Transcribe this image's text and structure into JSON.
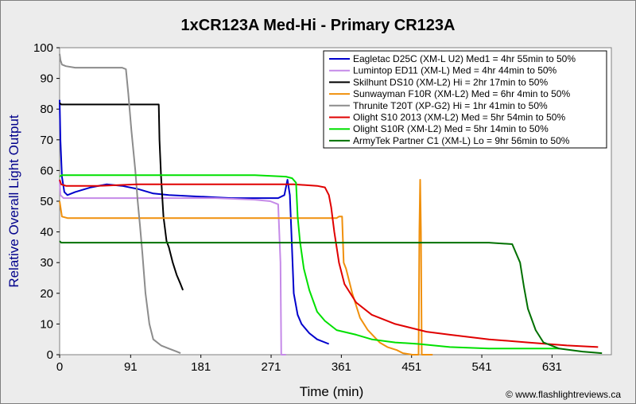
{
  "chart_data": {
    "type": "line",
    "title": "1xCR123A Med-Hi - Primary CR123A",
    "xlabel": "Time (min)",
    "ylabel": "Relative Overall Light Output",
    "xlim": [
      0,
      707
    ],
    "ylim": [
      0,
      100
    ],
    "x_ticks": [
      0,
      91,
      181,
      271,
      361,
      451,
      541,
      631
    ],
    "y_ticks": [
      0,
      10,
      20,
      30,
      40,
      50,
      60,
      70,
      80,
      90,
      100
    ],
    "grid": false,
    "legend_position": "top-right",
    "credit": "© www.flashlightreviews.ca",
    "series": [
      {
        "name": "Eagletac D25C (XM-L U2) Med1 = 4hr 55min to 50%",
        "color": "#0000cc",
        "x": [
          0,
          1,
          3,
          6,
          10,
          20,
          40,
          60,
          80,
          100,
          120,
          140,
          180,
          220,
          260,
          280,
          288,
          292,
          295,
          297,
          300,
          305,
          310,
          320,
          330,
          345
        ],
        "y": [
          83,
          70,
          58,
          53,
          52,
          53,
          54.5,
          55.5,
          55,
          54,
          52.5,
          52,
          51.5,
          51,
          51,
          51,
          52,
          57,
          52,
          40,
          20,
          13,
          10,
          7,
          5,
          3.5
        ]
      },
      {
        "name": "Lumintop ED11 (XM-L) Med = 4hr 44min to 50%",
        "color": "#c58ae8",
        "x": [
          0,
          1,
          5,
          50,
          100,
          150,
          200,
          250,
          270,
          280,
          283,
          284,
          285,
          290
        ],
        "y": [
          57,
          52,
          51,
          51,
          51,
          51,
          51,
          50.5,
          50,
          49,
          30,
          0,
          0,
          0
        ]
      },
      {
        "name": "Skilhunt DS10 (XM-L2) Hi = 2hr 17min to 50%",
        "color": "#000000",
        "x": [
          0,
          2,
          10,
          50,
          100,
          127,
          128,
          130,
          133,
          137,
          140,
          145,
          150,
          155,
          158
        ],
        "y": [
          82,
          81.5,
          81.5,
          81.5,
          81.5,
          81.5,
          70,
          58,
          45,
          37,
          35,
          30,
          26,
          23,
          21
        ]
      },
      {
        "name": "Sunwayman F10R (XM-L2) Med = 6hr 4min to 50%",
        "color": "#f0900c",
        "x": [
          0,
          3,
          10,
          50,
          100,
          200,
          300,
          355,
          358,
          362,
          364,
          367,
          375,
          385,
          395,
          410,
          420,
          432,
          440,
          452,
          460,
          461,
          462,
          463,
          464,
          465,
          468,
          478
        ],
        "y": [
          50,
          45,
          44.5,
          44.5,
          44.5,
          44.5,
          44.5,
          44.5,
          45,
          45,
          30,
          28,
          20,
          12,
          8,
          4,
          2.5,
          1.5,
          0.5,
          0,
          0,
          40,
          57,
          40,
          0,
          0,
          0,
          0
        ]
      },
      {
        "name": "Thrunite T20T (XP-G2) Hi = 1hr 41min to 50%",
        "color": "#8c8c8c",
        "x": [
          0,
          1,
          3,
          8,
          20,
          50,
          80,
          85,
          88,
          92,
          97,
          100,
          103,
          106,
          110,
          115,
          120,
          130,
          140,
          150,
          155
        ],
        "y": [
          98,
          96,
          94.5,
          94,
          93.5,
          93.5,
          93.5,
          93,
          85,
          73,
          60,
          50,
          42,
          33,
          20,
          10,
          5,
          3,
          2,
          1,
          0.5
        ]
      },
      {
        "name": "Olight S10 2013 (XM-L2) Med = 5hr 54min to 50%",
        "color": "#e00000",
        "x": [
          0,
          2,
          8,
          50,
          100,
          150,
          200,
          250,
          300,
          330,
          340,
          345,
          348,
          352,
          358,
          365,
          380,
          400,
          430,
          470,
          500,
          550,
          600,
          650,
          690
        ],
        "y": [
          57,
          55.5,
          55,
          55,
          55.5,
          55.5,
          55.5,
          55.5,
          55.5,
          55,
          54.5,
          52,
          48,
          40,
          30,
          23,
          17,
          13,
          10,
          7.5,
          6.5,
          5,
          4,
          3,
          2.5
        ]
      },
      {
        "name": "Olight S10R (XM-L2) Med = 5hr 14min to 50%",
        "color": "#00e000",
        "x": [
          0,
          3,
          10,
          50,
          100,
          150,
          200,
          250,
          290,
          298,
          303,
          305,
          308,
          313,
          320,
          330,
          340,
          355,
          380,
          400,
          430,
          460,
          500,
          550,
          600,
          640
        ],
        "y": [
          58,
          58.5,
          58.5,
          58.5,
          58.5,
          58.5,
          58.5,
          58.5,
          58,
          57.5,
          56,
          45,
          37,
          28,
          21,
          14,
          11,
          8,
          6.5,
          5,
          4,
          3.5,
          2.5,
          2,
          2,
          2
        ]
      },
      {
        "name": "ArmyTek Partner C1 (XM-L) Lo = 9hr 56min to 50%",
        "color": "#007000",
        "x": [
          0,
          2,
          10,
          100,
          200,
          300,
          350,
          400,
          450,
          500,
          550,
          580,
          590,
          595,
          600,
          610,
          620,
          640,
          670,
          695
        ],
        "y": [
          37,
          36.5,
          36.5,
          36.5,
          36.5,
          36.5,
          36.5,
          36.5,
          36.5,
          36.5,
          36.5,
          36,
          30,
          22,
          15,
          8,
          4,
          2,
          1,
          0.5
        ]
      }
    ]
  }
}
